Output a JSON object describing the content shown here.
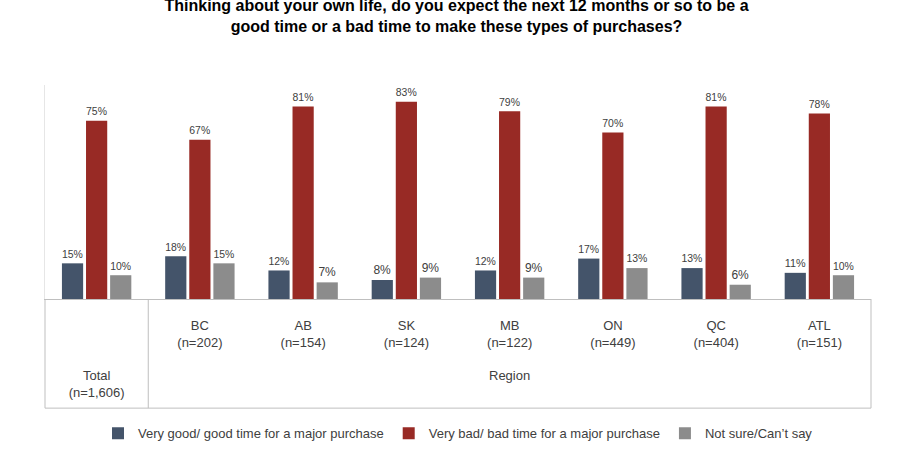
{
  "chart_data": {
    "type": "bar",
    "title": "Thinking about your own life, do you expect the next 12 months or so to be a good time or a bad time to make these types of purchases?",
    "categories": [
      "Total (n=1,606)",
      "BC (n=202)",
      "AB (n=154)",
      "SK (n=124)",
      "MB (n=122)",
      "ON (n=449)",
      "QC (n=404)",
      "ATL (n=151)"
    ],
    "annotations": [
      "Region"
    ],
    "series": [
      {
        "name": "Very good/ good time for a major purchase",
        "color": "#44546A",
        "values": [
          15,
          18,
          12,
          8,
          12,
          17,
          13,
          11
        ],
        "value_labels": [
          "15%",
          "18%",
          "12%",
          "8%",
          "12%",
          "17%",
          "13%",
          "11%"
        ]
      },
      {
        "name": "Very bad/ bad time for a major purchase",
        "color": "#982A25",
        "values": [
          75,
          67,
          81,
          83,
          79,
          70,
          81,
          78
        ],
        "value_labels": [
          "75%",
          "67%",
          "81%",
          "83%",
          "79%",
          "70%",
          "81%",
          "78%"
        ]
      },
      {
        "name": "Not sure/Can’t say",
        "color": "#8C8C8C",
        "values": [
          10,
          15,
          7,
          9,
          9,
          13,
          6,
          10
        ],
        "value_labels": [
          "10%",
          "15%",
          "7%",
          "9%",
          "9%",
          "13%",
          "6%",
          "10%"
        ]
      }
    ],
    "ylim": [
      0,
      90
    ],
    "data_labels": true,
    "tick_labels": "x",
    "grid": false,
    "legend": "bottom"
  }
}
